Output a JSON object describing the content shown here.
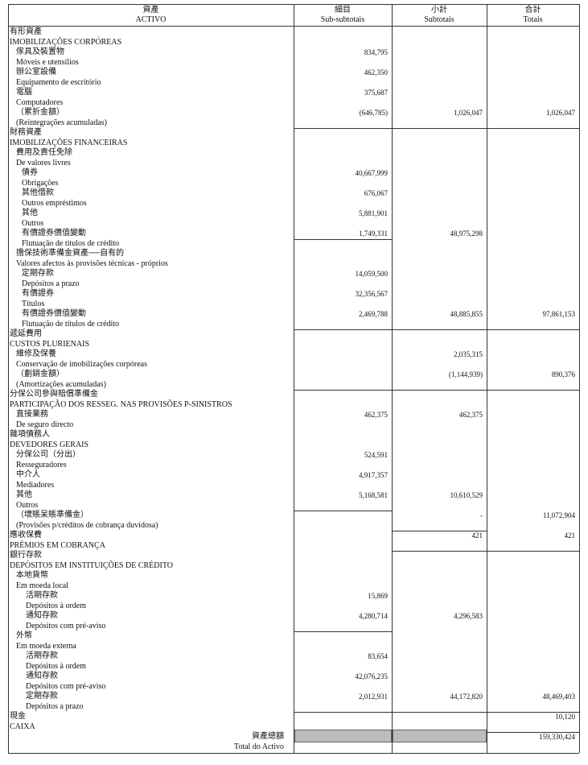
{
  "header": {
    "label": [
      "資產",
      "ACTIVO"
    ],
    "sub_subtotals": [
      "細目",
      "Sub-subtotais"
    ],
    "subtotals": [
      "小計",
      "Subtotais"
    ],
    "totals": [
      "合計",
      "Totais"
    ]
  },
  "table": {
    "rows": [
      [
        "有形資產",
        null,
        null,
        null
      ],
      [
        "IMOBILIZAÇÕES CORPÓREAS",
        null,
        null,
        null
      ],
      [
        "傢具及裝置物",
        "834,795",
        null,
        null
      ],
      [
        "Móveis e utensílios",
        null,
        null,
        null
      ],
      [
        "辦公室設備",
        "462,350",
        null,
        null
      ],
      [
        "Equipamento de escritório",
        null,
        null,
        null
      ],
      [
        "電腦",
        "375,687",
        null,
        null
      ],
      [
        "Computadores",
        null,
        null,
        null
      ],
      [
        "（累折金額）",
        "(646,785)",
        "1,026,047",
        "1,026,047"
      ],
      [
        "(Reintegrações acumuladas)",
        null,
        null,
        null
      ],
      [
        "財務資產",
        null,
        null,
        null
      ],
      [
        "IMOBILIZAÇÕES FINANCEIRAS",
        null,
        null,
        null
      ],
      [
        "費用及責任免除",
        null,
        null,
        null
      ],
      [
        "De valores livres",
        null,
        null,
        null
      ],
      [
        "債券",
        "40,667,999",
        null,
        null
      ],
      [
        "Obrigações",
        null,
        null,
        null
      ],
      [
        "其他借款",
        "676,067",
        null,
        null
      ],
      [
        "Outros empréstimos",
        null,
        null,
        null
      ],
      [
        "其他",
        "5,881,901",
        null,
        null
      ],
      [
        "Outros",
        null,
        null,
        null
      ],
      [
        "有價證券價值變動",
        "1,749,331",
        "48,975,298",
        null
      ],
      [
        "Flutuação de títulos de crédito",
        null,
        null,
        null
      ],
      [
        "擔保技術準備金資產──自有的",
        null,
        null,
        null
      ],
      [
        "Valores afectos às provisões técnicas - próprios",
        null,
        null,
        null
      ],
      [
        "定期存款",
        "14,059,500",
        null,
        null
      ],
      [
        "Depósitos a prazo",
        null,
        null,
        null
      ],
      [
        "有價證券",
        "32,356,567",
        null,
        null
      ],
      [
        "Títulos",
        null,
        null,
        null
      ],
      [
        "有價證券價值變動",
        "2,469,788",
        "48,885,855",
        "97,861,153"
      ],
      [
        "Flutuação de títulos de crédito",
        null,
        null,
        null
      ],
      [
        "遞延費用",
        null,
        null,
        null
      ],
      [
        "CUSTOS PLURIENAIS",
        null,
        null,
        null
      ],
      [
        "維修及保養",
        null,
        "2,035,315",
        null
      ],
      [
        "Conservação de imobilizações corpóreas",
        null,
        null,
        null
      ],
      [
        "（劃銷金額）",
        null,
        "(1,144,939)",
        "890,376"
      ],
      [
        "(Amortizações acumuladas)",
        null,
        null,
        null
      ],
      [
        "分保公司參與賠償準備金",
        null,
        null,
        null
      ],
      [
        "PARTICIPAÇÃO DOS RESSEG. NAS PROVISÕES P-SINISTROS",
        null,
        null,
        null
      ],
      [
        "直接業務",
        "462,375",
        "462,375",
        null
      ],
      [
        "De seguro directo",
        null,
        null,
        null
      ],
      [
        "雜項債務人",
        null,
        null,
        null
      ],
      [
        "DEVEDORES GERAIS",
        null,
        null,
        null
      ],
      [
        "分保公司（分出）",
        "524,591",
        null,
        null
      ],
      [
        "Resseguradores",
        null,
        null,
        null
      ],
      [
        "中介人",
        "4,917,357",
        null,
        null
      ],
      [
        "Mediadores",
        null,
        null,
        null
      ],
      [
        "其他",
        "5,168,581",
        "10,610,529",
        null
      ],
      [
        "Outros",
        null,
        null,
        null
      ],
      [
        "（壞賬呆賬準備金）",
        null,
        "-",
        "11,072,904"
      ],
      [
        "(Provisões p/créditos de cobrança duvidosa)",
        null,
        null,
        null
      ],
      [
        "應收保費",
        null,
        "421",
        "421"
      ],
      [
        "PRÉMIOS EM COBRANÇA",
        null,
        null,
        null
      ],
      [
        "銀行存款",
        null,
        null,
        null
      ],
      [
        "DEPÓSITOS EM INSTITUIÇÕES DE CRÉDITO",
        null,
        null,
        null
      ],
      [
        "本地貨幣",
        null,
        null,
        null
      ],
      [
        "Em moeda local",
        null,
        null,
        null
      ],
      [
        "活期存款",
        "15,869",
        null,
        null
      ],
      [
        "Depósitos à ordem",
        null,
        null,
        null
      ],
      [
        "通知存款",
        "4,280,714",
        "4,296,583",
        null
      ],
      [
        "Depósitos com pré-aviso",
        null,
        null,
        null
      ],
      [
        "外幣",
        null,
        null,
        null
      ],
      [
        "Em moeda externa",
        null,
        null,
        null
      ],
      [
        "活期存款",
        "83,654",
        null,
        null
      ],
      [
        "Depósitos à ordem",
        null,
        null,
        null
      ],
      [
        "通知存款",
        "42,076,235",
        null,
        null
      ],
      [
        "Depósitos com pré-aviso",
        null,
        null,
        null
      ],
      [
        "定期存款",
        "2,012,931",
        "44,172,820",
        "48,469,403"
      ],
      [
        "Depósitos a prazo",
        null,
        null,
        null
      ],
      [
        "現金",
        null,
        null,
        "10,120"
      ],
      [
        "CAIXA",
        null,
        null,
        null
      ],
      [
        "資產總額",
        null,
        null,
        "159,330,424"
      ],
      [
        "Total do Activo",
        null,
        null,
        null
      ]
    ]
  }
}
